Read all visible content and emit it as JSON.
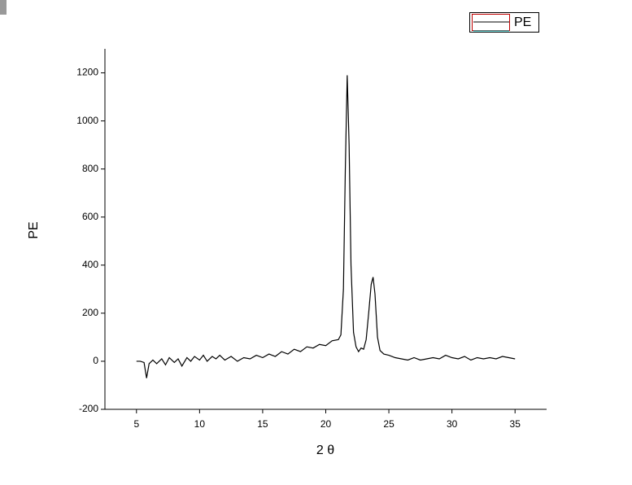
{
  "chart_data": {
    "type": "line",
    "x_label": "2 θ",
    "y_label": "PE",
    "x": [
      5.0,
      5.3,
      5.6,
      5.8,
      6.0,
      6.3,
      6.6,
      7.0,
      7.3,
      7.6,
      8.0,
      8.3,
      8.6,
      9.0,
      9.3,
      9.6,
      10.0,
      10.3,
      10.6,
      11.0,
      11.3,
      11.6,
      12.0,
      12.5,
      13.0,
      13.5,
      14.0,
      14.5,
      15.0,
      15.5,
      16.0,
      16.5,
      17.0,
      17.5,
      18.0,
      18.5,
      19.0,
      19.5,
      20.0,
      20.5,
      21.0,
      21.2,
      21.4,
      21.55,
      21.7,
      21.85,
      22.0,
      22.2,
      22.4,
      22.6,
      22.8,
      23.0,
      23.2,
      23.4,
      23.6,
      23.75,
      23.9,
      24.1,
      24.3,
      24.6,
      25.0,
      25.5,
      26.0,
      26.5,
      27.0,
      27.5,
      28.0,
      28.5,
      29.0,
      29.5,
      30.0,
      30.5,
      31.0,
      31.5,
      32.0,
      32.5,
      33.0,
      33.5,
      34.0,
      34.5,
      35.0
    ],
    "series": [
      {
        "name": "PE",
        "color": "#000000",
        "values": [
          0,
          0,
          -5,
          -70,
          -10,
          5,
          -10,
          10,
          -15,
          15,
          -5,
          10,
          -20,
          15,
          0,
          20,
          5,
          25,
          0,
          20,
          10,
          25,
          5,
          20,
          0,
          15,
          10,
          25,
          15,
          30,
          20,
          40,
          30,
          50,
          40,
          60,
          55,
          70,
          65,
          85,
          90,
          110,
          300,
          800,
          1190,
          900,
          400,
          120,
          60,
          40,
          55,
          50,
          90,
          200,
          320,
          350,
          280,
          100,
          45,
          30,
          25,
          15,
          10,
          5,
          15,
          5,
          10,
          15,
          10,
          25,
          15,
          10,
          20,
          5,
          15,
          10,
          15,
          10,
          20,
          15,
          10
        ]
      }
    ],
    "xlim": [
      2.5,
      37.5
    ],
    "xticks": [
      5,
      10,
      15,
      20,
      25,
      30,
      35
    ],
    "ylim": [
      -200,
      1300
    ],
    "yticks": [
      -200,
      0,
      200,
      400,
      600,
      800,
      1000,
      1200
    ]
  }
}
